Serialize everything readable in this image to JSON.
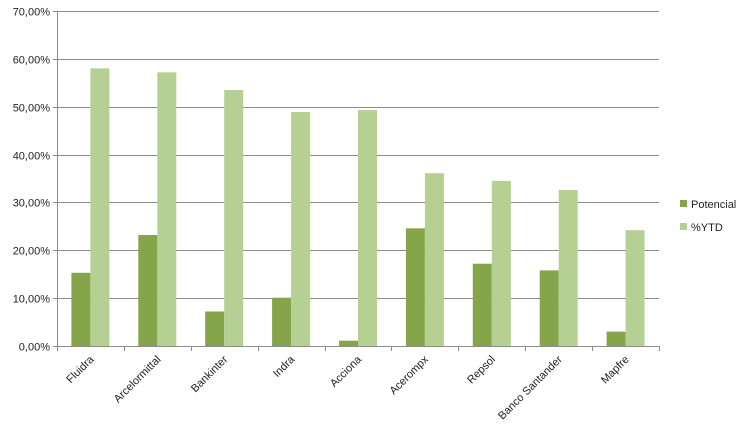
{
  "chart_data": {
    "type": "bar",
    "categories": [
      "Fluidra",
      "Arcelormittal",
      "Bankinter",
      "Indra",
      "Acciona",
      "Acerompx",
      "Repsol",
      "Banco Santander",
      "Mapfre"
    ],
    "series": [
      {
        "name": "Potencial",
        "color": "#86a44a",
        "values": [
          15.3,
          23.2,
          7.2,
          10.1,
          1.1,
          24.6,
          17.2,
          15.8,
          3.0
        ]
      },
      {
        "name": "%YTD",
        "color": "#b6cf93",
        "values": [
          58.0,
          57.2,
          53.5,
          48.9,
          49.3,
          36.1,
          34.5,
          32.6,
          24.2
        ]
      }
    ],
    "y_ticks": [
      "0,00%",
      "10,00%",
      "20,00%",
      "30,00%",
      "40,00%",
      "50,00%",
      "60,00%",
      "70,00%"
    ],
    "ylim": [
      0,
      70
    ],
    "grid": true,
    "legend_position": "right",
    "title": "",
    "xlabel": "",
    "ylabel": ""
  }
}
